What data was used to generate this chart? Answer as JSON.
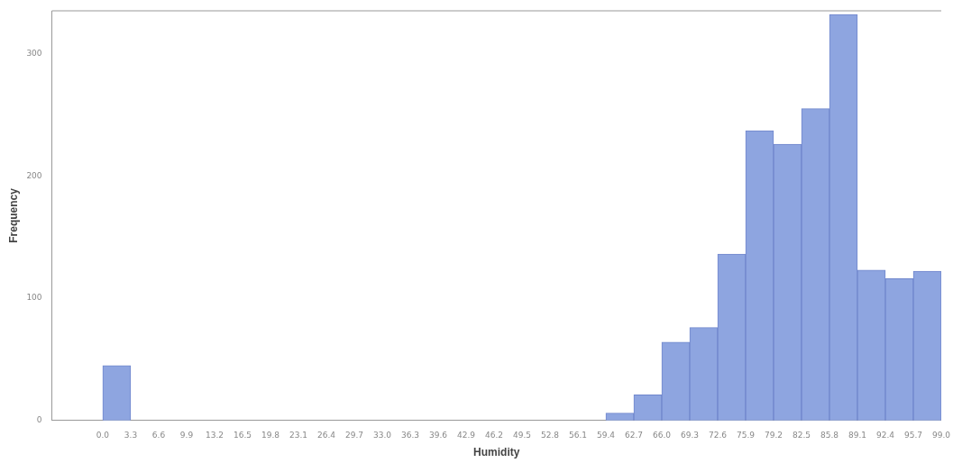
{
  "chart_data": {
    "type": "histogram",
    "xlabel": "Humidity",
    "ylabel": "Frequency",
    "bins": [
      0.0,
      3.3,
      6.6,
      9.9,
      13.2,
      16.5,
      19.8,
      23.1,
      26.4,
      29.7,
      33.0,
      36.3,
      39.6,
      42.9,
      46.2,
      49.5,
      52.8,
      56.1,
      59.4,
      62.7,
      66.0,
      69.3,
      72.6,
      75.9,
      79.2,
      82.5,
      85.8,
      89.1,
      92.4,
      95.7,
      99.0
    ],
    "values": [
      45,
      0,
      0,
      0,
      0,
      0,
      0,
      0,
      0,
      0,
      0,
      0,
      0,
      0,
      0,
      0,
      0,
      0,
      6,
      21,
      64,
      76,
      136,
      237,
      226,
      255,
      332,
      123,
      116,
      122
    ],
    "color": "#8ea5e0",
    "xlim": [
      -6,
      99.0
    ],
    "ylim": [
      0,
      335
    ],
    "yticks": [
      0,
      100,
      200,
      300
    ],
    "xticks": [
      {
        "value": 0,
        "label": "0.0"
      },
      {
        "value": 3.3,
        "label": "3.3"
      },
      {
        "value": 6.6,
        "label": "6.6"
      },
      {
        "value": 9.9,
        "label": "9.9"
      },
      {
        "value": 13.2,
        "label": "13.2"
      },
      {
        "value": 16.5,
        "label": "16.5"
      },
      {
        "value": 19.8,
        "label": "19.8"
      },
      {
        "value": 23.1,
        "label": "23.1"
      },
      {
        "value": 26.4,
        "label": "26.4"
      },
      {
        "value": 29.7,
        "label": "29.7"
      },
      {
        "value": 33,
        "label": "33.0"
      },
      {
        "value": 36.3,
        "label": "36.3"
      },
      {
        "value": 39.6,
        "label": "39.6"
      },
      {
        "value": 42.9,
        "label": "42.9"
      },
      {
        "value": 46.2,
        "label": "46.2"
      },
      {
        "value": 49.5,
        "label": "49.5"
      },
      {
        "value": 52.8,
        "label": "52.8"
      },
      {
        "value": 56.1,
        "label": "56.1"
      },
      {
        "value": 59.4,
        "label": "59.4"
      },
      {
        "value": 62.7,
        "label": "62.7"
      },
      {
        "value": 66,
        "label": "66.0"
      },
      {
        "value": 69.3,
        "label": "69.3"
      },
      {
        "value": 72.6,
        "label": "72.6"
      },
      {
        "value": 75.9,
        "label": "75.9"
      },
      {
        "value": 79.2,
        "label": "79.2"
      },
      {
        "value": 82.5,
        "label": "82.5"
      },
      {
        "value": 85.8,
        "label": "85.8"
      },
      {
        "value": 89.1,
        "label": "89.1"
      },
      {
        "value": 92.4,
        "label": "92.4"
      },
      {
        "value": 95.7,
        "label": "95.7"
      },
      {
        "value": 99,
        "label": "99.0"
      }
    ],
    "grid": false,
    "legend": false
  }
}
